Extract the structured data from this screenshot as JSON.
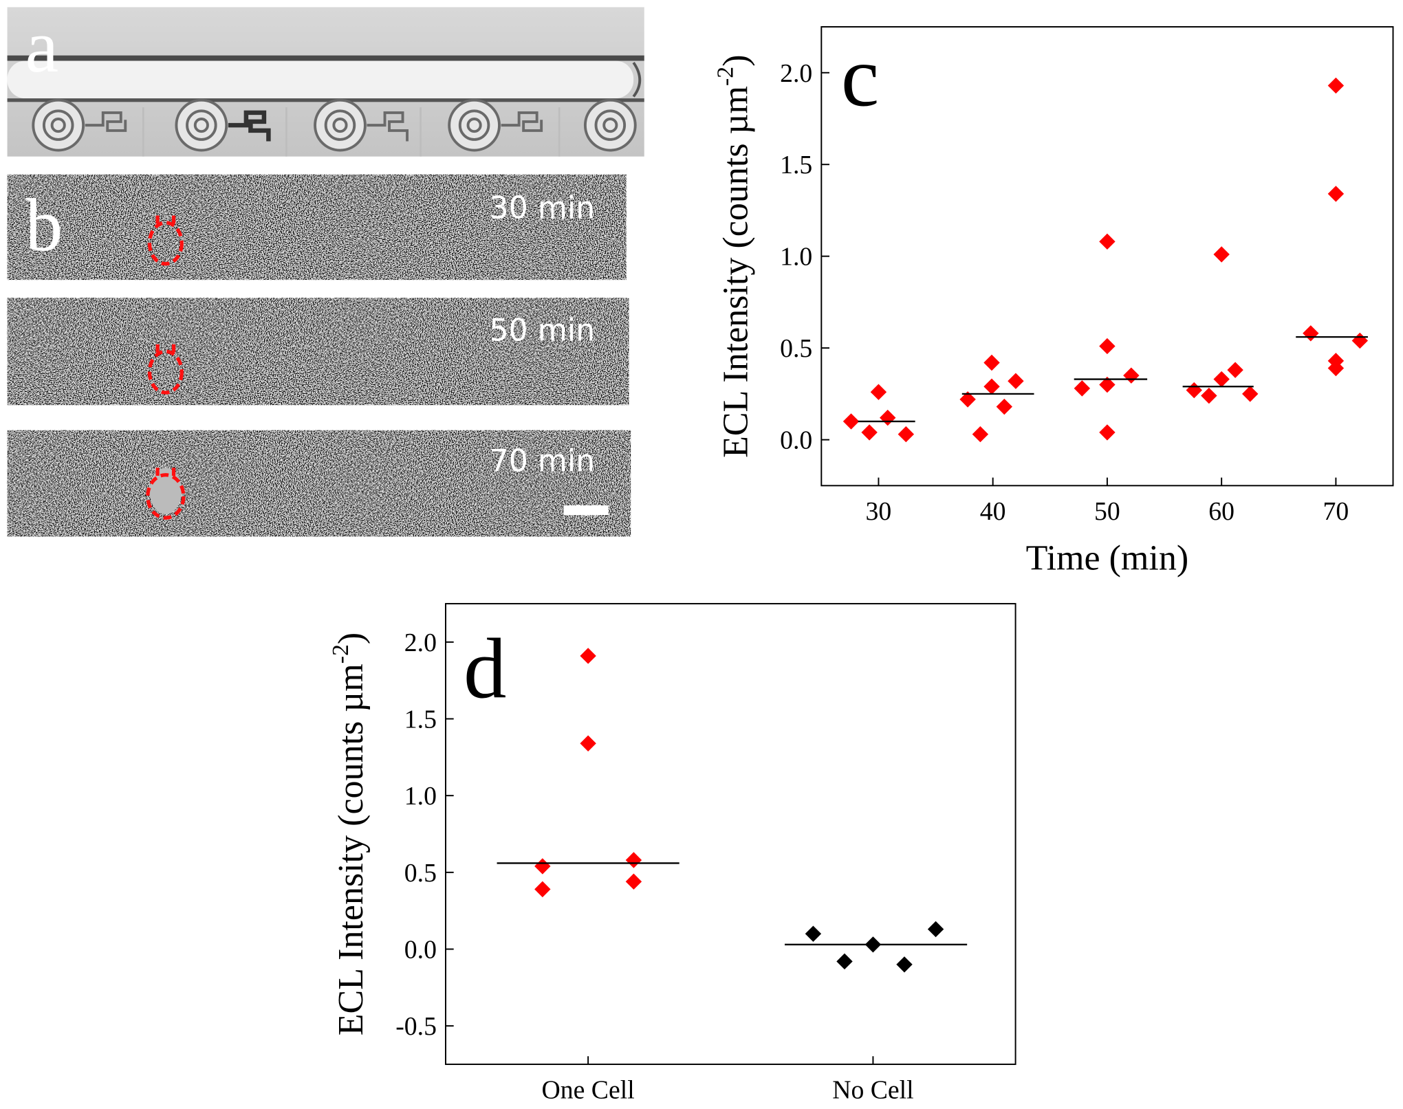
{
  "image_panels": {
    "a": {
      "label": "a"
    },
    "b": {
      "label": "b",
      "frames": [
        "30 min",
        "50 min",
        "70 min"
      ]
    }
  },
  "chart_data": [
    {
      "type": "scatter",
      "panel_label": "c",
      "xlabel": "Time (min)",
      "ylabel": "ECL Intensity (counts µm",
      "ylabel_sup": "-2",
      "ylabel_end": ")",
      "xlim": [
        25,
        75
      ],
      "ylim": [
        -0.25,
        2.25
      ],
      "xticks": [
        30,
        40,
        50,
        60,
        70
      ],
      "yticks": [
        {
          "value": 0,
          "label": "0.0"
        },
        {
          "value": 0.5,
          "label": "0.5"
        },
        {
          "value": 1,
          "label": "1.0"
        },
        {
          "value": 1.5,
          "label": "1.5"
        },
        {
          "value": 2,
          "label": "2.0"
        }
      ],
      "series": [
        {
          "color": "#ff0000",
          "x": [
            27.6,
            30,
            29.2,
            30.8,
            32.4,
            37.8,
            38.9,
            39.9,
            39.9,
            41,
            42,
            47.8,
            50,
            50,
            50,
            50,
            52.1,
            57.6,
            58.9,
            60,
            60,
            61.2,
            62.5,
            67.8,
            70,
            70,
            70,
            70,
            72.1
          ],
          "y": [
            0.1,
            0.26,
            0.04,
            0.12,
            0.03,
            0.22,
            0.03,
            0.42,
            0.29,
            0.18,
            0.32,
            0.28,
            1.08,
            0.51,
            0.3,
            0.04,
            0.35,
            0.27,
            0.24,
            1.01,
            0.33,
            0.38,
            0.25,
            0.58,
            1.93,
            1.34,
            0.43,
            0.39,
            0.54
          ],
          "medians": [
            {
              "x": [
                28.2,
                33.2
              ],
              "y": 0.1
            },
            {
              "x": [
                37.3,
                43.6
              ],
              "y": 0.25
            },
            {
              "x": [
                47.1,
                53.5
              ],
              "y": 0.33
            },
            {
              "x": [
                56.6,
                62.8
              ],
              "y": 0.29
            },
            {
              "x": [
                66.5,
                72.8
              ],
              "y": 0.56
            }
          ]
        }
      ]
    },
    {
      "type": "scatter",
      "panel_label": "d",
      "ylabel": "ECL Intensity (counts µm",
      "ylabel_sup": "-2",
      "ylabel_end": ")",
      "xlim": [
        0.5,
        2.5
      ],
      "ylim": [
        -0.75,
        2.25
      ],
      "xticks": [
        {
          "value": 1,
          "label": "One Cell"
        },
        {
          "value": 2,
          "label": "No Cell"
        }
      ],
      "yticks": [
        {
          "value": -0.5,
          "label": "-0.5"
        },
        {
          "value": 0,
          "label": "0.0"
        },
        {
          "value": 0.5,
          "label": "0.5"
        },
        {
          "value": 1,
          "label": "1.0"
        },
        {
          "value": 1.5,
          "label": "1.5"
        },
        {
          "value": 2,
          "label": "2.0"
        }
      ],
      "series": [
        {
          "color": "#ff0000",
          "x": [
            0.84,
            0.84,
            1,
            1,
            1.16,
            1.16
          ],
          "y": [
            0.54,
            0.39,
            1.91,
            1.34,
            0.58,
            0.44
          ],
          "medians": [
            {
              "x": [
                0.68,
                1.32
              ],
              "y": 0.56
            }
          ]
        },
        {
          "color": "#000000",
          "x": [
            1.79,
            1.9,
            2.0,
            2.11,
            2.22
          ],
          "y": [
            0.1,
            -0.08,
            0.03,
            -0.1,
            0.13
          ],
          "medians": [
            {
              "x": [
                1.69,
                2.33
              ],
              "y": 0.03
            }
          ]
        }
      ]
    }
  ]
}
